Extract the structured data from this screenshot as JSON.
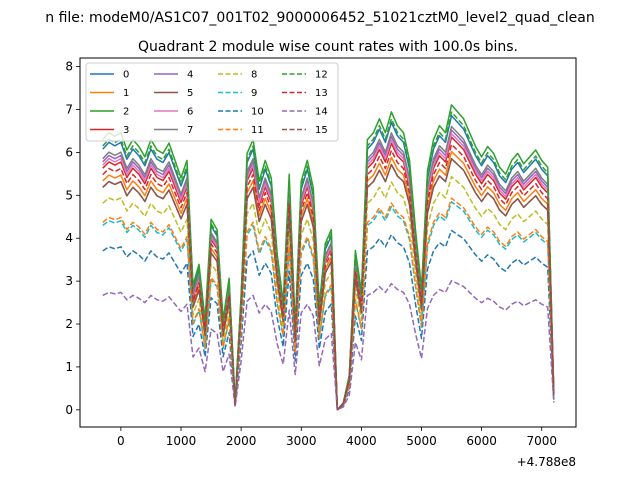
{
  "suptitle": "n file: modeM0/AS1C07_001T02_9000006452_51021cztM0_level2_quad_clean",
  "chart_data": {
    "type": "line",
    "title": "Quadrant 2 module wise count rates with 100.0s bins.",
    "xlabel": "",
    "ylabel": "",
    "x_offset_label": "+4.788e8",
    "x_offset": 478800000,
    "xlim": [
      -680,
      7570
    ],
    "ylim": [
      -0.4,
      8.2
    ],
    "x_ticks": [
      0,
      1000,
      2000,
      3000,
      4000,
      5000,
      6000,
      7000
    ],
    "x_tick_labels": [
      "0",
      "1000",
      "2000",
      "3000",
      "4000",
      "5000",
      "6000",
      "7000"
    ],
    "y_ticks": [
      0,
      1,
      2,
      3,
      4,
      5,
      6,
      7,
      8
    ],
    "y_tick_labels": [
      "0",
      "1",
      "2",
      "3",
      "4",
      "5",
      "6",
      "7",
      "8"
    ],
    "grid": false,
    "legend": {
      "placement": "top-left",
      "columns": 4
    },
    "x": [
      -300,
      -200,
      -100,
      0,
      100,
      200,
      300,
      400,
      500,
      600,
      700,
      800,
      900,
      1000,
      1100,
      1200,
      1300,
      1400,
      1500,
      1600,
      1700,
      1800,
      1900,
      2000,
      2100,
      2200,
      2300,
      2400,
      2500,
      2600,
      2700,
      2800,
      2900,
      3000,
      3100,
      3200,
      3300,
      3400,
      3500,
      3600,
      3700,
      3800,
      3900,
      4000,
      4100,
      4200,
      4300,
      4400,
      4500,
      4600,
      4700,
      4800,
      4900,
      5000,
      5100,
      5200,
      5300,
      5400,
      5500,
      5600,
      5700,
      5800,
      5900,
      6000,
      6100,
      6200,
      6300,
      6400,
      6500,
      6600,
      6700,
      6800,
      6900,
      7000,
      7100,
      7200
    ],
    "base_shape": [
      0.78,
      0.8,
      0.79,
      0.8,
      0.75,
      0.78,
      0.76,
      0.73,
      0.78,
      0.75,
      0.74,
      0.77,
      0.72,
      0.67,
      0.72,
      0.36,
      0.42,
      0.26,
      0.55,
      0.52,
      0.26,
      0.38,
      0.02,
      0.33,
      0.74,
      0.78,
      0.66,
      0.72,
      0.67,
      0.45,
      0.31,
      0.68,
      0.24,
      0.66,
      0.72,
      0.64,
      0.3,
      0.48,
      0.52,
      0.0,
      0.02,
      0.1,
      0.46,
      0.34,
      0.78,
      0.8,
      0.84,
      0.8,
      0.86,
      0.82,
      0.8,
      0.72,
      0.52,
      0.35,
      0.69,
      0.78,
      0.82,
      0.8,
      0.88,
      0.86,
      0.84,
      0.8,
      0.76,
      0.73,
      0.76,
      0.74,
      0.7,
      0.68,
      0.72,
      0.74,
      0.71,
      0.73,
      0.75,
      0.72,
      0.7,
      0.05
    ],
    "series": [
      {
        "name": "0",
        "color": "#1f77b4",
        "dash": "solid",
        "level": 8.2
      },
      {
        "name": "1",
        "color": "#ff7f0e",
        "dash": "solid",
        "level": 7.2
      },
      {
        "name": "2",
        "color": "#2ca02c",
        "dash": "solid",
        "level": 8.5
      },
      {
        "name": "3",
        "color": "#d62728",
        "dash": "solid",
        "level": 7.6
      },
      {
        "name": "4",
        "color": "#9467bd",
        "dash": "solid",
        "level": 7.8
      },
      {
        "name": "5",
        "color": "#8c564b",
        "dash": "solid",
        "level": 7.0
      },
      {
        "name": "6",
        "color": "#e377c2",
        "dash": "solid",
        "level": 7.7
      },
      {
        "name": "7",
        "color": "#7f7f7f",
        "dash": "solid",
        "level": 7.9
      },
      {
        "name": "8",
        "color": "#bcbd22",
        "dash": "dashed",
        "level": 6.5
      },
      {
        "name": "9",
        "color": "#17becf",
        "dash": "dashed",
        "level": 5.8
      },
      {
        "name": "10",
        "color": "#1f77b4",
        "dash": "dashed",
        "level": 5.0
      },
      {
        "name": "11",
        "color": "#ff7f0e",
        "dash": "dashed",
        "level": 5.9
      },
      {
        "name": "12",
        "color": "#2ca02c",
        "dash": "dashed",
        "level": 8.3
      },
      {
        "name": "13",
        "color": "#d62728",
        "dash": "dashed",
        "level": 7.4
      },
      {
        "name": "14",
        "color": "#9467bd",
        "dash": "dashed",
        "level": 3.6
      },
      {
        "name": "15",
        "color": "#8c564b",
        "dash": "dashed",
        "level": 7.0
      }
    ]
  }
}
